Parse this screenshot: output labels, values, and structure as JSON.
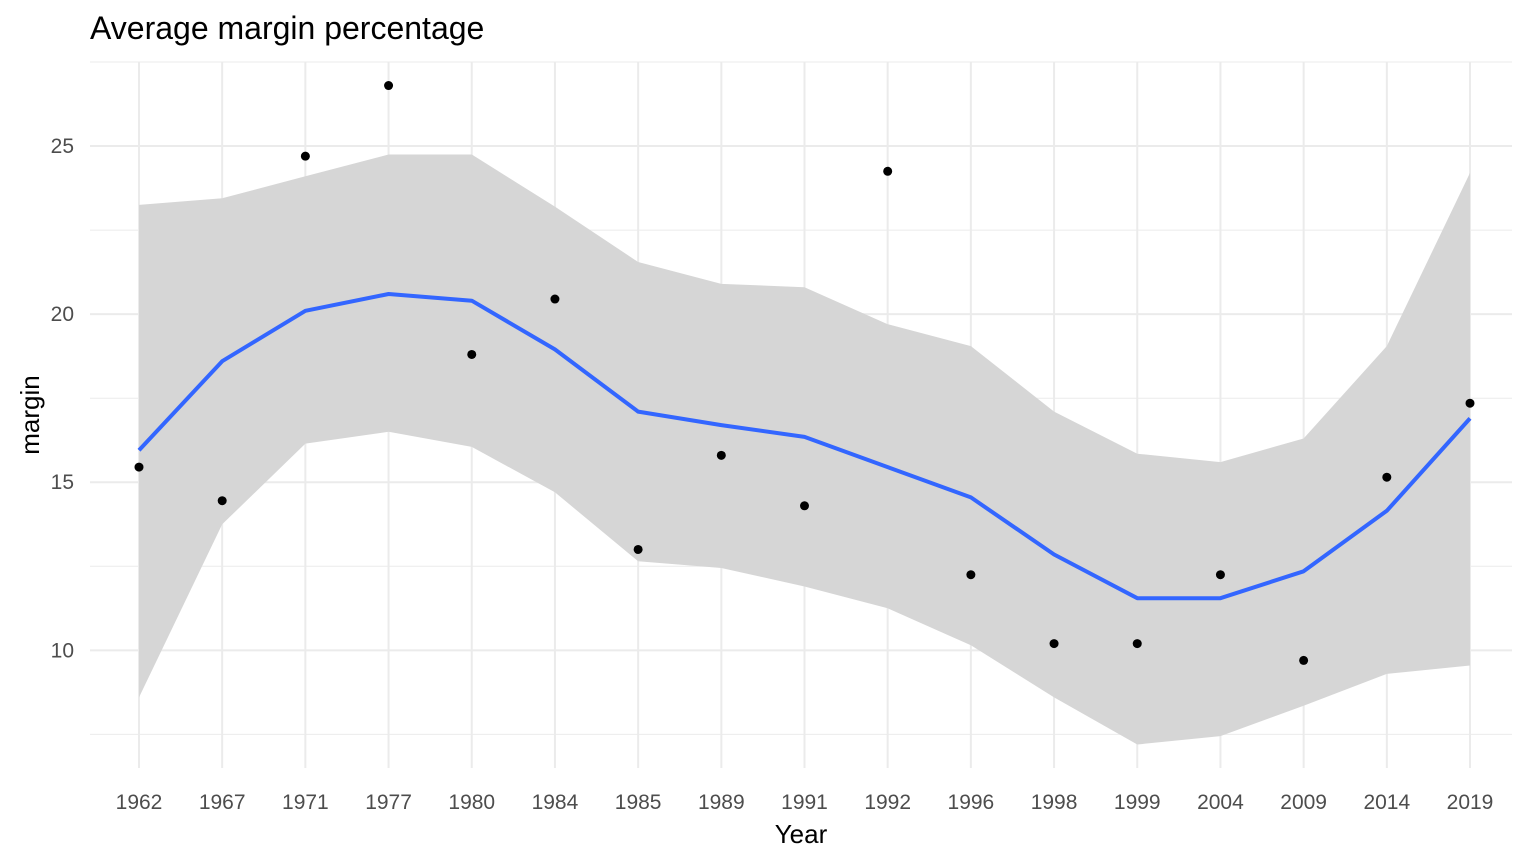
{
  "chart_data": {
    "type": "scatter",
    "title": "Average margin percentage",
    "xlabel": "Year",
    "ylabel": "margin",
    "categories": [
      "1962",
      "1967",
      "1971",
      "1977",
      "1980",
      "1984",
      "1985",
      "1989",
      "1991",
      "1992",
      "1996",
      "1998",
      "1999",
      "2004",
      "2009",
      "2014",
      "2019"
    ],
    "ylim": [
      6.5,
      27.5
    ],
    "yticks": [
      10,
      15,
      20,
      25
    ],
    "grid": true,
    "legend": "none",
    "series": [
      {
        "type": "scatter",
        "values": [
          15.45,
          14.45,
          24.7,
          26.8,
          18.8,
          20.45,
          13.0,
          15.8,
          14.3,
          24.25,
          12.25,
          10.2,
          10.2,
          12.25,
          9.7,
          15.15,
          17.35
        ]
      },
      {
        "type": "line",
        "smooth": "loess",
        "values": [
          15.95,
          18.6,
          20.1,
          20.6,
          20.4,
          18.95,
          17.1,
          16.7,
          16.35,
          15.45,
          14.55,
          12.85,
          11.55,
          11.55,
          12.35,
          14.15,
          16.9
        ],
        "ci_upper": [
          23.25,
          23.45,
          24.1,
          24.75,
          24.75,
          23.2,
          21.55,
          20.9,
          20.8,
          19.7,
          19.05,
          17.1,
          15.85,
          15.6,
          16.3,
          19.05,
          24.2
        ],
        "ci_lower": [
          8.6,
          13.75,
          16.15,
          16.5,
          16.05,
          14.7,
          12.65,
          12.45,
          11.9,
          11.25,
          10.15,
          8.6,
          7.2,
          7.45,
          8.35,
          9.3,
          9.55
        ]
      }
    ],
    "colors": {
      "points": "#000000",
      "line": "#3366ff",
      "ribbon": "#d6d6d6",
      "grid": "#ebebeb",
      "tick_text": "#4d4d4d"
    }
  }
}
